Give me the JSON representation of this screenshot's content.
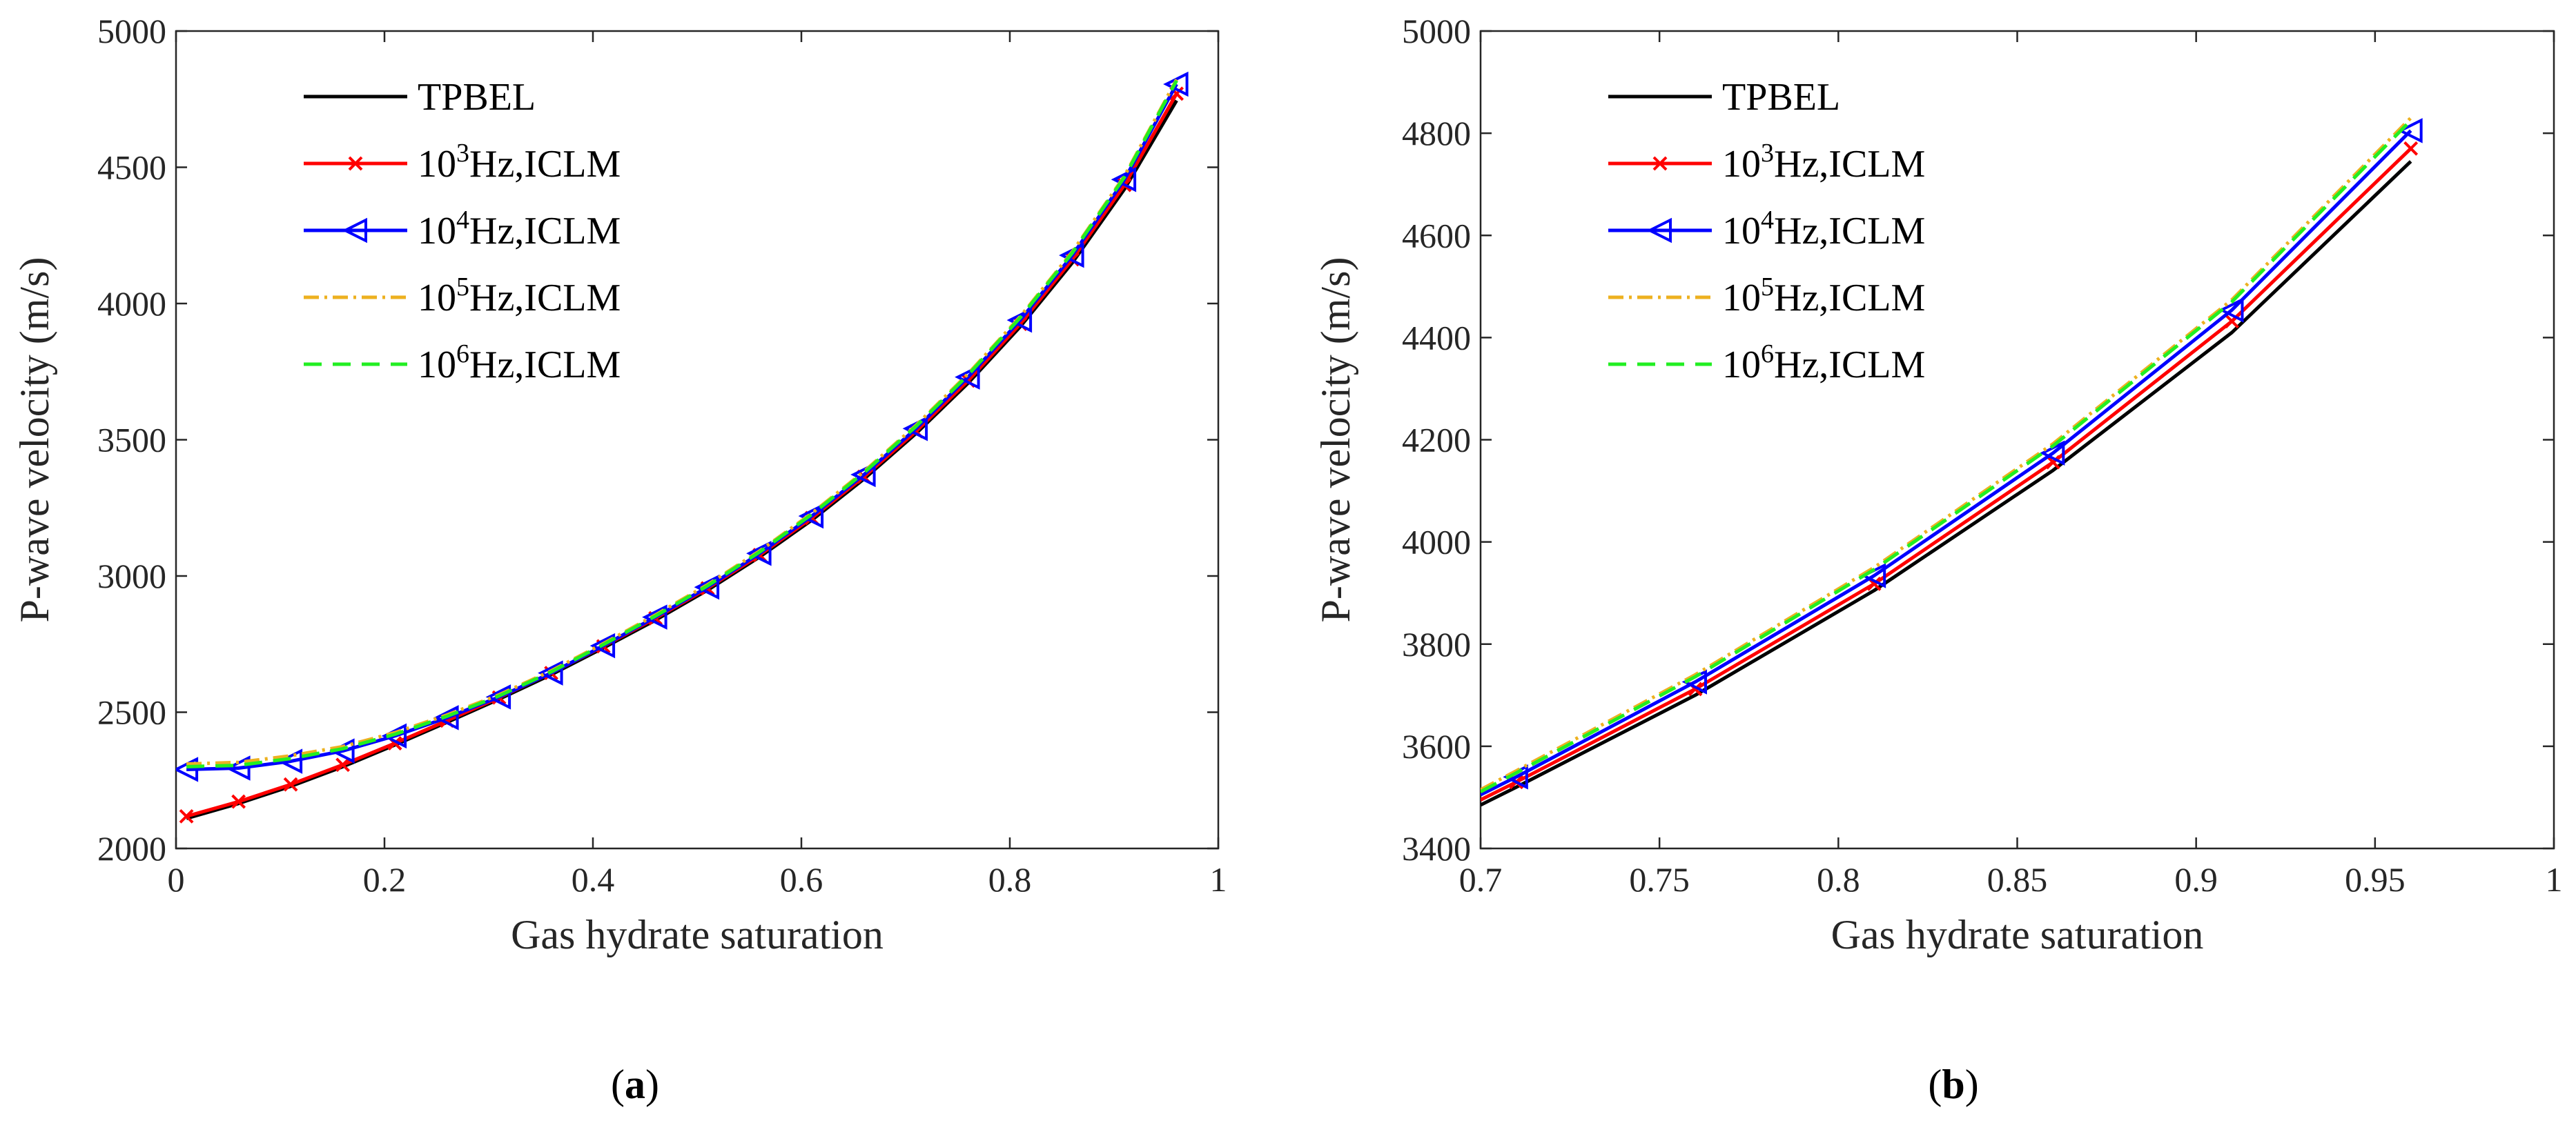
{
  "chart_data": [
    {
      "type": "line",
      "panel": "a",
      "caption_letter": "a",
      "xlabel": "Gas hydrate saturation",
      "ylabel": "P-wave velocity (m/s)",
      "xlim": [
        0,
        1
      ],
      "ylim": [
        2000,
        5000
      ],
      "xticks": [
        "0",
        "0.2",
        "0.4",
        "0.6",
        "0.8",
        "1"
      ],
      "xtick_values": [
        0,
        0.2,
        0.4,
        0.6,
        0.8,
        1
      ],
      "yticks": [
        "2000",
        "2500",
        "3000",
        "3500",
        "4000",
        "4500",
        "5000"
      ],
      "ytick_values": [
        2000,
        2500,
        3000,
        3500,
        4000,
        4500,
        5000
      ],
      "grid": false,
      "legend_position": "top-left",
      "x": [
        0.01,
        0.06,
        0.11,
        0.16,
        0.21,
        0.26,
        0.31,
        0.36,
        0.41,
        0.46,
        0.51,
        0.56,
        0.61,
        0.66,
        0.71,
        0.76,
        0.81,
        0.86,
        0.91,
        0.96
      ],
      "series": [
        {
          "name": "TPBEL",
          "legend_base": "TPBEL",
          "legend_exp": "",
          "legend_rest": "",
          "color": "#000000",
          "dash": "",
          "marker": "none",
          "values": [
            2110,
            2165,
            2228,
            2300,
            2380,
            2463,
            2548,
            2638,
            2736,
            2838,
            2948,
            3070,
            3205,
            3356,
            3523,
            3708,
            3915,
            4150,
            4420,
            4745
          ]
        },
        {
          "name": "10^3Hz,ICLM",
          "legend_base": "10",
          "legend_exp": "3",
          "legend_rest": "Hz,ICLM",
          "color": "#ff0000",
          "dash": "",
          "marker": "x",
          "values": [
            2118,
            2172,
            2235,
            2307,
            2386,
            2469,
            2554,
            2644,
            2742,
            2845,
            2955,
            3077,
            3213,
            3364,
            3531,
            3717,
            3925,
            4162,
            4435,
            4770
          ]
        },
        {
          "name": "10^4Hz,ICLM",
          "legend_base": "10",
          "legend_exp": "4",
          "legend_rest": "Hz,ICLM",
          "color": "#0000ff",
          "dash": "",
          "marker": "triangle-left",
          "values": [
            2290,
            2295,
            2320,
            2358,
            2413,
            2480,
            2556,
            2644,
            2744,
            2849,
            2959,
            3083,
            3220,
            3372,
            3541,
            3730,
            3939,
            4177,
            4455,
            4805
          ]
        },
        {
          "name": "10^5Hz,ICLM",
          "legend_base": "10",
          "legend_exp": "5",
          "legend_rest": "Hz,ICLM",
          "color": "#edb120",
          "dash": "22 8 4 8",
          "marker": "none",
          "values": [
            2310,
            2316,
            2340,
            2374,
            2425,
            2490,
            2564,
            2652,
            2752,
            2857,
            2968,
            3092,
            3230,
            3383,
            3553,
            3742,
            3952,
            4190,
            4468,
            4822
          ]
        },
        {
          "name": "10^6Hz,ICLM",
          "legend_base": "10",
          "legend_exp": "6",
          "legend_rest": "Hz,ICLM",
          "color": "#22ee22",
          "dash": "26 16",
          "marker": "none",
          "values": [
            2300,
            2305,
            2330,
            2366,
            2419,
            2485,
            2560,
            2648,
            2748,
            2853,
            2964,
            3088,
            3226,
            3379,
            3549,
            3738,
            3948,
            4186,
            4464,
            4818
          ]
        }
      ]
    },
    {
      "type": "line",
      "panel": "b",
      "caption_letter": "b",
      "xlabel": "Gas hydrate saturation",
      "ylabel": "P-wave velocity (m/s)",
      "xlim": [
        0.7,
        1
      ],
      "ylim": [
        3400,
        5000
      ],
      "xticks": [
        "0.7",
        "0.75",
        "0.8",
        "0.85",
        "0.9",
        "0.95",
        "1"
      ],
      "xtick_values": [
        0.7,
        0.75,
        0.8,
        0.85,
        0.9,
        0.95,
        1
      ],
      "yticks": [
        "3400",
        "3600",
        "3800",
        "4000",
        "4200",
        "4400",
        "4600",
        "4800",
        "5000"
      ],
      "ytick_values": [
        3400,
        3600,
        3800,
        4000,
        4200,
        4400,
        4600,
        4800,
        5000
      ],
      "grid": false,
      "legend_position": "top-left",
      "x": [
        0.7,
        0.71,
        0.76,
        0.81,
        0.86,
        0.91,
        0.96
      ],
      "series": [
        {
          "name": "TPBEL",
          "legend_base": "TPBEL",
          "legend_exp": "",
          "legend_rest": "",
          "color": "#000000",
          "dash": "",
          "marker": "none",
          "values": [
            3485,
            3520,
            3700,
            3905,
            4140,
            4410,
            4745
          ]
        },
        {
          "name": "10^3Hz,ICLM",
          "legend_base": "10",
          "legend_exp": "3",
          "legend_rest": "Hz,ICLM",
          "color": "#ff0000",
          "dash": "",
          "marker": "x",
          "values": [
            3495,
            3530,
            3712,
            3918,
            4156,
            4432,
            4770
          ]
        },
        {
          "name": "10^4Hz,ICLM",
          "legend_base": "10",
          "legend_exp": "4",
          "legend_rest": "Hz,ICLM",
          "color": "#0000ff",
          "dash": "",
          "marker": "triangle-left",
          "values": [
            3505,
            3540,
            3726,
            3934,
            4174,
            4454,
            4805
          ]
        },
        {
          "name": "10^5Hz,ICLM",
          "legend_base": "10",
          "legend_exp": "5",
          "legend_rest": "Hz,ICLM",
          "color": "#edb120",
          "dash": "22 8 4 8",
          "marker": "none",
          "values": [
            3515,
            3552,
            3740,
            3950,
            4192,
            4474,
            4830
          ]
        },
        {
          "name": "10^6Hz,ICLM",
          "legend_base": "10",
          "legend_exp": "6",
          "legend_rest": "Hz,ICLM",
          "color": "#22ee22",
          "dash": "26 16",
          "marker": "none",
          "values": [
            3511,
            3548,
            3736,
            3946,
            4188,
            4470,
            4825
          ]
        }
      ]
    }
  ]
}
